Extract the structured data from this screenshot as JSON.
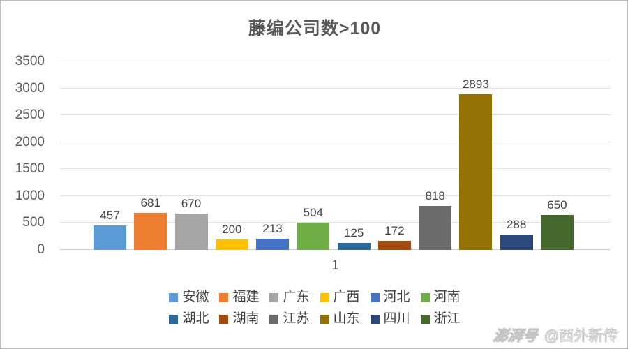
{
  "title": "藤编公司数>100",
  "chart_data": {
    "type": "bar",
    "title": "藤编公司数>100",
    "categories": [
      "安徽",
      "福建",
      "广东",
      "广西",
      "河北",
      "河南",
      "湖北",
      "湖南",
      "江苏",
      "山东",
      "四川",
      "浙江"
    ],
    "values": [
      457,
      681,
      670,
      200,
      213,
      504,
      125,
      172,
      818,
      2893,
      288,
      650
    ],
    "colors": [
      "#5B9BD5",
      "#ED7D31",
      "#A5A5A5",
      "#FFC000",
      "#4472C4",
      "#70AD47",
      "#2E699C",
      "#A04A10",
      "#6B6B6B",
      "#937201",
      "#2A4878",
      "#45682C"
    ],
    "xlabel": "",
    "ylabel": "",
    "x_tick_label": "1",
    "ylim": [
      0,
      3500
    ],
    "y_ticks": [
      0,
      500,
      1000,
      1500,
      2000,
      2500,
      3000,
      3500
    ],
    "grid": true,
    "legend_position": "bottom",
    "legend_rows": 2,
    "data_labels": true
  },
  "x_axis": {
    "tick_label": "1"
  },
  "watermark": {
    "logo_text": "澎湃号",
    "account_text": "@西外新传"
  }
}
